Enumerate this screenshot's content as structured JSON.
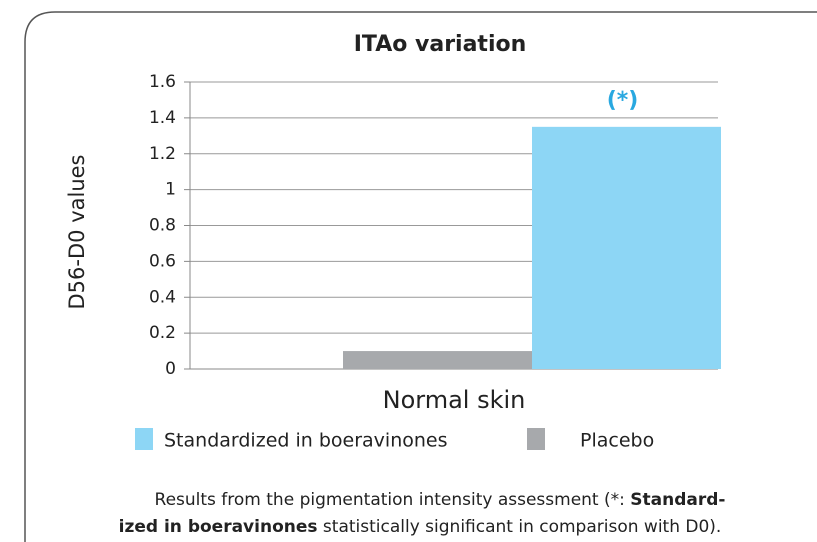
{
  "chart_data": {
    "type": "bar",
    "title": "ITAo variation",
    "y_label": "D56-D0 values",
    "categories": [
      "Normal skin"
    ],
    "series": [
      {
        "name": "Standardized in boeravinones",
        "color": "#8dd6f5",
        "values": [
          1.35
        ]
      },
      {
        "name": "Placebo",
        "color": "#a7a9ac",
        "values": [
          0.1
        ]
      }
    ],
    "annotation": "(*)",
    "annotation_color": "#29a8e0",
    "ylim": [
      0,
      1.6
    ],
    "yticks": [
      0,
      0.2,
      0.4,
      0.6,
      0.8,
      1,
      1.2,
      1.4,
      1.6
    ],
    "grid": true,
    "caption": [
      "Results from the pigmentation intensity assessment (*: ",
      "Standard-",
      "ized in boeravinones",
      " statistically significant in comparison with D0)."
    ]
  }
}
